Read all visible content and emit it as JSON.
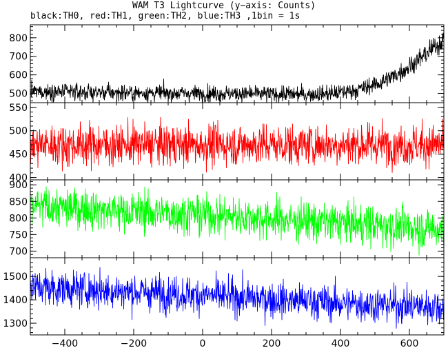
{
  "title": "WAM T3 Lightcurve (y−axis: Counts)",
  "subtitle": "black:TH0, red:TH1, green:TH2, blue:TH3 ,1bin = 1s",
  "chart_data": {
    "type": "line",
    "x_range": [
      -500,
      700
    ],
    "x_ticks": [
      -400,
      -200,
      0,
      200,
      400,
      600
    ],
    "x_tick_labels": [
      "−400",
      "−200",
      "0",
      "200",
      "400",
      "600"
    ],
    "bin_seconds": 1,
    "panels": [
      {
        "name": "TH0",
        "color": "#000000",
        "ylim": [
          450,
          870
        ],
        "y_ticks": [
          500,
          600,
          700,
          800
        ],
        "trend": [
          [
            -500,
            510
          ],
          [
            -300,
            505
          ],
          [
            0,
            500
          ],
          [
            300,
            495
          ],
          [
            380,
            500
          ],
          [
            450,
            520
          ],
          [
            520,
            560
          ],
          [
            580,
            620
          ],
          [
            640,
            700
          ],
          [
            700,
            790
          ]
        ],
        "noise_sd": 22
      },
      {
        "name": "TH1",
        "color": "#ff0000",
        "ylim": [
          395,
          560
        ],
        "y_ticks": [
          400,
          450,
          500,
          550
        ],
        "trend": [
          [
            -500,
            470
          ],
          [
            700,
            470
          ]
        ],
        "noise_sd": 22
      },
      {
        "name": "TH2",
        "color": "#00ff00",
        "ylim": [
          680,
          915
        ],
        "y_ticks": [
          700,
          750,
          800,
          850,
          900
        ],
        "trend": [
          [
            -500,
            835
          ],
          [
            0,
            810
          ],
          [
            400,
            785
          ],
          [
            700,
            765
          ]
        ],
        "noise_sd": 30
      },
      {
        "name": "TH3",
        "color": "#0000ff",
        "ylim": [
          1250,
          1580
        ],
        "y_ticks": [
          1300,
          1400,
          1500
        ],
        "trend": [
          [
            -500,
            1455
          ],
          [
            0,
            1420
          ],
          [
            400,
            1385
          ],
          [
            700,
            1370
          ]
        ],
        "noise_sd": 38
      }
    ]
  }
}
